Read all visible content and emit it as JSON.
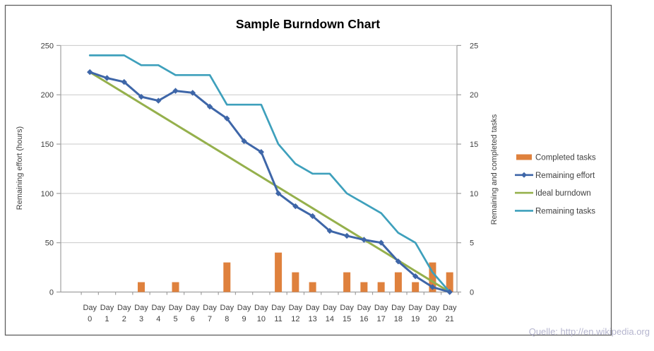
{
  "page": {
    "source_note": "Quelle: http://en.wikipedia.org"
  },
  "chart_data": {
    "type": "combo",
    "title": "Sample Burndown Chart",
    "categories": [
      "Day 0",
      "Day 1",
      "Day 2",
      "Day 3",
      "Day 4",
      "Day 5",
      "Day 6",
      "Day 7",
      "Day 8",
      "Day 9",
      "Day 10",
      "Day 11",
      "Day 12",
      "Day 13",
      "Day 14",
      "Day 15",
      "Day 16",
      "Day 17",
      "Day 18",
      "Day 19",
      "Day 20",
      "Day 21"
    ],
    "left_axis": {
      "label": "Remaining effort (hours)",
      "min": 0,
      "max": 250,
      "step": 50,
      "ticks": [
        0,
        50,
        100,
        150,
        200,
        250
      ]
    },
    "right_axis": {
      "label": "Remaining and  completed tasks",
      "min": 0,
      "max": 25,
      "step": 5,
      "ticks": [
        0,
        5,
        10,
        15,
        20,
        25
      ]
    },
    "grid": "horizontal",
    "legend_position": "right",
    "series": [
      {
        "name": "Completed tasks",
        "type": "bar",
        "axis": "right",
        "color": "#df813d",
        "values": [
          0,
          0,
          0,
          1,
          0,
          1,
          0,
          0,
          3,
          0,
          0,
          4,
          2,
          1,
          0,
          2,
          1,
          1,
          2,
          1,
          3,
          2
        ]
      },
      {
        "name": "Remaining effort",
        "type": "line",
        "marker": "diamond",
        "axis": "left",
        "color": "#3e66a8",
        "values": [
          223,
          217,
          213,
          198,
          194,
          204,
          202,
          188,
          176,
          153,
          142,
          100,
          87,
          77,
          62,
          57,
          53,
          50,
          31,
          16,
          5,
          0
        ]
      },
      {
        "name": "Ideal burndown",
        "type": "line",
        "marker": "none",
        "axis": "left",
        "color": "#95b04c",
        "values": [
          223,
          212.4,
          201.8,
          191.1,
          180.5,
          169.9,
          159.3,
          148.7,
          138.1,
          127.4,
          116.8,
          106.2,
          95.6,
          85,
          74.3,
          63.7,
          53.1,
          42.5,
          31.9,
          21.2,
          10.6,
          0
        ]
      },
      {
        "name": "Remaining tasks",
        "type": "line",
        "marker": "none",
        "axis": "right",
        "color": "#3ea0bc",
        "values": [
          24,
          24,
          24,
          23,
          23,
          22,
          22,
          22,
          19,
          19,
          19,
          15,
          13,
          12,
          12,
          10,
          9,
          8,
          6,
          5,
          2,
          0
        ]
      }
    ]
  },
  "style": {
    "grid_color": "#c9c9c9",
    "axis_color": "#a0a0a0",
    "frame_color": "#5f5f5f",
    "text_color": "#3f3f3f"
  }
}
